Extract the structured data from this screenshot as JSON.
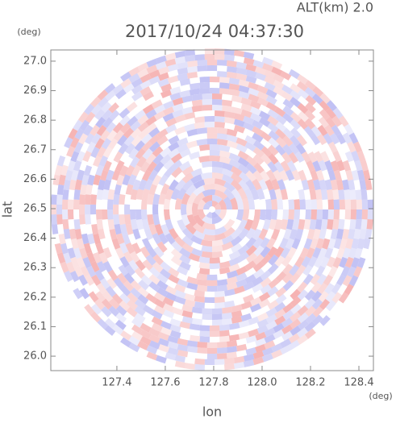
{
  "chart_data": {
    "type": "heatmap",
    "title": "2017/10/24 04:37:30",
    "subtitle": "ALT(km) 2.0",
    "x_label": "lon",
    "y_label": "lat",
    "x_unit": "(deg)",
    "y_unit": "(deg)",
    "xlim": [
      127.127,
      128.46
    ],
    "ylim": [
      25.951,
      27.038
    ],
    "xticks": [
      127.4,
      127.6,
      127.8,
      {
        "value": 128,
        "label": "128.0"
      },
      128.2,
      128.4
    ],
    "yticks": [
      {
        "value": 26,
        "label": "26.0"
      },
      26.1,
      26.2,
      26.3,
      26.4,
      26.5,
      26.6,
      26.7,
      26.8,
      26.9,
      {
        "value": 27,
        "label": "27.0"
      }
    ],
    "colors": [
      "#f4a6a6",
      "#b4b4f2"
    ]
  }
}
